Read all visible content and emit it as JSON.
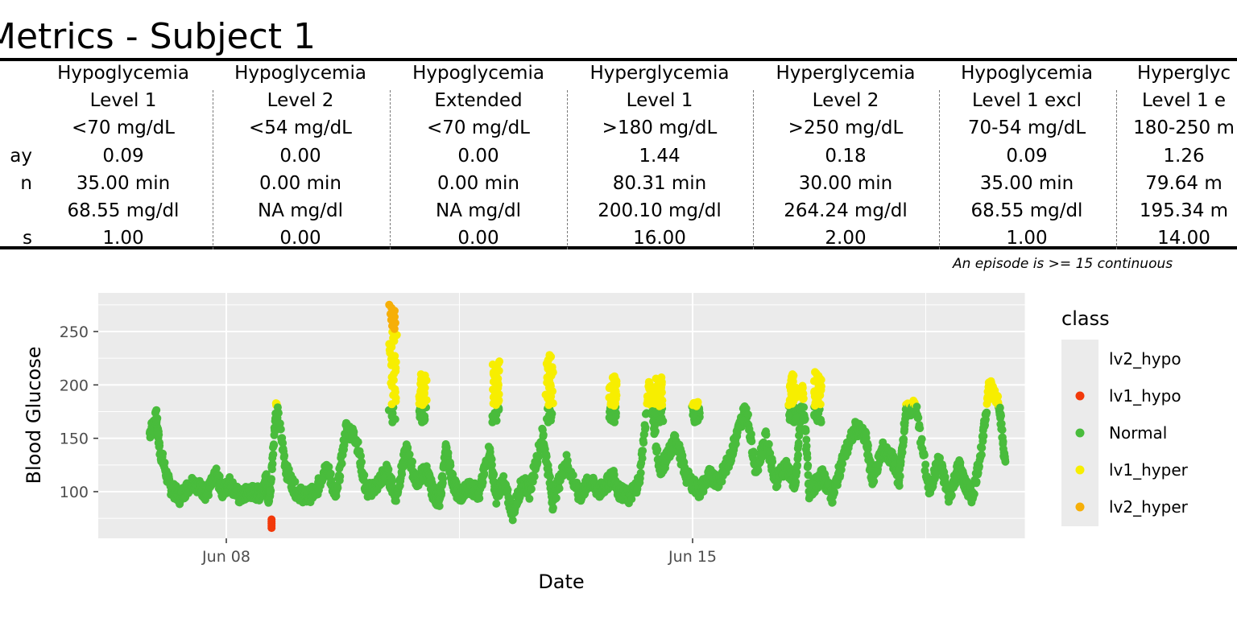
{
  "title": "Metrics - Subject 1",
  "row_labels": [
    "ay",
    "n",
    "",
    "s"
  ],
  "columns": [
    {
      "line1": "Hypoglycemia",
      "line2": "Level 1",
      "line3": "<70 mg/dL",
      "per_day": "0.09",
      "duration": "35.00 min",
      "mean_glucose": "68.55 mg/dl",
      "episodes": "1.00"
    },
    {
      "line1": "Hypoglycemia",
      "line2": "Level 2",
      "line3": "<54 mg/dL",
      "per_day": "0.00",
      "duration": "0.00 min",
      "mean_glucose": "NA mg/dl",
      "episodes": "0.00"
    },
    {
      "line1": "Hypoglycemia",
      "line2": "Extended",
      "line3": "<70 mg/dL",
      "per_day": "0.00",
      "duration": "0.00 min",
      "mean_glucose": "NA mg/dl",
      "episodes": "0.00"
    },
    {
      "line1": "Hyperglycemia",
      "line2": "Level 1",
      "line3": ">180 mg/dL",
      "per_day": "1.44",
      "duration": "80.31 min",
      "mean_glucose": "200.10 mg/dl",
      "episodes": "16.00"
    },
    {
      "line1": "Hyperglycemia",
      "line2": "Level 2",
      "line3": ">250 mg/dL",
      "per_day": "0.18",
      "duration": "30.00 min",
      "mean_glucose": "264.24 mg/dl",
      "episodes": "2.00"
    },
    {
      "line1": "Hypoglycemia",
      "line2": "Level 1 excl",
      "line3": "70-54 mg/dL",
      "per_day": "0.09",
      "duration": "35.00 min",
      "mean_glucose": "68.55 mg/dl",
      "episodes": "1.00"
    },
    {
      "line1": "Hyperglyc",
      "line2": "Level 1 e",
      "line3": "180-250 m",
      "per_day": "1.26",
      "duration": "79.64 m",
      "mean_glucose": "195.34 m",
      "episodes": "14.00"
    }
  ],
  "footnote": "An episode is >= 15 continuous",
  "chart_data": {
    "type": "scatter",
    "xlabel": "Date",
    "ylabel": "Blood Glucose",
    "x_ticks": [
      "Jun 08",
      "Jun 15"
    ],
    "x_range": [
      "2020-06-06",
      "2020-06-20"
    ],
    "y_ticks": [
      100,
      150,
      200,
      250
    ],
    "ylim": [
      55,
      283
    ],
    "grid": true,
    "background": "#ebebeb",
    "legend": {
      "title": "class",
      "position": "right",
      "entries": [
        {
          "name": "lv2_hypo",
          "color": ""
        },
        {
          "name": "lv1_hypo",
          "color": "#f2390a"
        },
        {
          "name": "Normal",
          "color": "#49bc3c"
        },
        {
          "name": "lv1_hyper",
          "color": "#f7ee00"
        },
        {
          "name": "lv2_hyper",
          "color": "#f6af08"
        }
      ]
    },
    "trace_days": [
      6.85,
      6.95,
      7.0,
      7.15,
      7.3,
      7.5,
      7.7,
      7.85,
      7.95,
      8.05,
      8.2,
      8.35,
      8.5,
      8.6,
      8.63,
      8.66,
      8.75,
      8.9,
      9.05,
      9.2,
      9.35,
      9.5,
      9.65,
      9.8,
      9.95,
      10.1,
      10.25,
      10.4,
      10.55,
      10.7,
      10.85,
      11.0,
      11.1,
      11.2,
      11.3,
      11.4,
      11.5,
      11.65,
      11.8,
      11.95,
      12.05,
      12.15,
      12.3,
      12.45,
      12.55,
      12.75,
      12.9,
      13.1,
      13.3,
      13.45,
      13.6,
      13.72,
      13.8,
      13.9,
      14.05,
      14.2,
      14.35,
      14.5,
      14.6,
      14.75,
      14.9,
      15.1,
      15.25,
      15.4,
      15.55,
      15.65,
      15.8,
      15.95,
      16.1,
      16.25,
      16.4,
      16.55,
      16.65,
      16.75,
      16.95,
      17.1,
      17.25,
      17.45,
      17.6,
      17.7,
      17.85,
      18.0,
      18.1,
      18.2,
      18.35,
      18.55,
      18.7,
      18.85,
      19.0,
      19.1,
      19.2,
      19.35,
      19.45,
      19.6,
      19.7
    ],
    "trace_glucose": [
      155,
      170,
      140,
      105,
      95,
      110,
      98,
      115,
      100,
      108,
      95,
      100,
      98,
      110,
      95,
      100,
      182,
      120,
      100,
      95,
      100,
      125,
      95,
      160,
      150,
      100,
      105,
      120,
      95,
      140,
      110,
      120,
      100,
      90,
      140,
      110,
      95,
      105,
      98,
      140,
      95,
      110,
      80,
      110,
      100,
      155,
      90,
      130,
      95,
      110,
      100,
      108,
      115,
      100,
      95,
      110,
      200,
      120,
      130,
      150,
      115,
      100,
      115,
      110,
      130,
      150,
      180,
      120,
      150,
      110,
      125,
      105,
      200,
      100,
      115,
      95,
      130,
      160,
      150,
      110,
      140,
      130,
      110,
      175,
      180,
      100,
      130,
      95,
      125,
      105,
      95,
      145,
      200,
      185,
      120
    ],
    "hypo_points": {
      "day": 8.68,
      "glucose": [
        66,
        68,
        70,
        72,
        74
      ]
    },
    "hyper_spikes": [
      {
        "day": 10.5,
        "peak": 275
      },
      {
        "day": 10.95,
        "peak": 210
      },
      {
        "day": 12.05,
        "peak": 222
      },
      {
        "day": 12.85,
        "peak": 228
      },
      {
        "day": 13.8,
        "peak": 208
      },
      {
        "day": 14.5,
        "peak": 207
      },
      {
        "day": 15.05,
        "peak": 184
      },
      {
        "day": 16.5,
        "peak": 210
      },
      {
        "day": 16.88,
        "peak": 212
      }
    ]
  }
}
